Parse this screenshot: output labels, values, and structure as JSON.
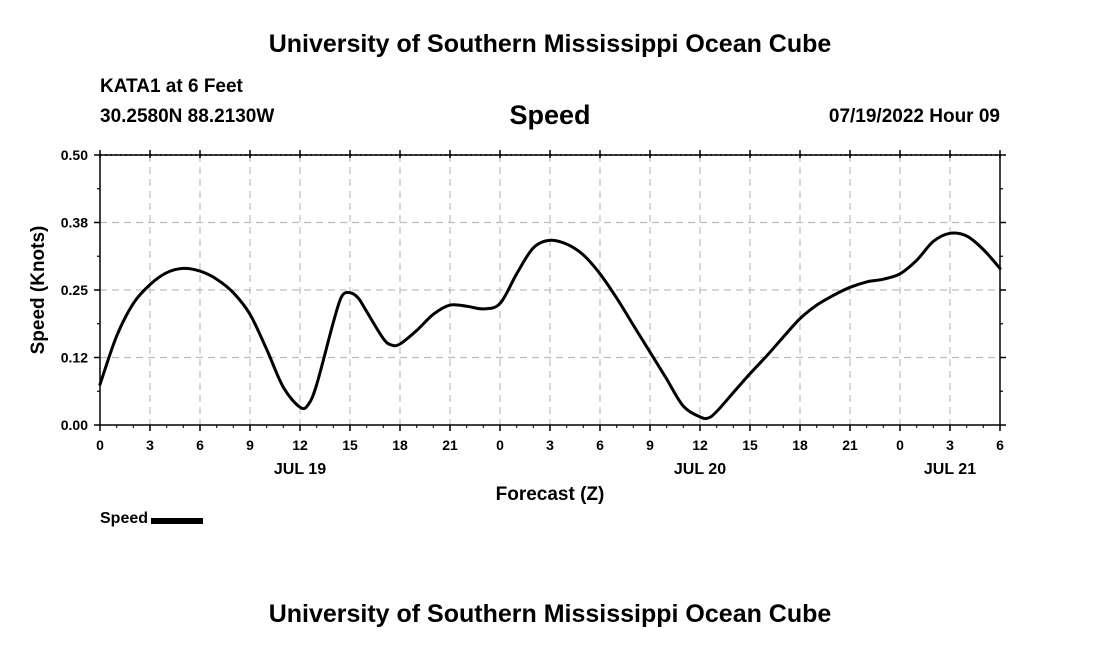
{
  "header": {
    "title": "University of Southern Mississippi Ocean Cube",
    "station": "KATA1 at 6 Feet",
    "coordinates": "30.2580N  88.2130W",
    "variable": "Speed",
    "datetime": "07/19/2022 Hour 09"
  },
  "footer": {
    "title": "University of Southern Mississippi Ocean Cube"
  },
  "legend": {
    "label": "Speed",
    "color": "#000000"
  },
  "chart_data": {
    "type": "line",
    "xlabel": "Forecast (Z)",
    "ylabel": "Speed (Knots)",
    "x_range_hours": [
      0,
      54
    ],
    "ylim": [
      0,
      0.5
    ],
    "y_ticks": [
      {
        "value": 0.0,
        "label": "0.00"
      },
      {
        "value": 0.125,
        "label": "0.12"
      },
      {
        "value": 0.25,
        "label": "0.25"
      },
      {
        "value": 0.375,
        "label": "0.38"
      },
      {
        "value": 0.5,
        "label": "0.50"
      }
    ],
    "x_ticks": [
      {
        "hour": 0,
        "label": "0"
      },
      {
        "hour": 3,
        "label": "3"
      },
      {
        "hour": 6,
        "label": "6"
      },
      {
        "hour": 9,
        "label": "9"
      },
      {
        "hour": 12,
        "label": "12"
      },
      {
        "hour": 15,
        "label": "15"
      },
      {
        "hour": 18,
        "label": "18"
      },
      {
        "hour": 21,
        "label": "21"
      },
      {
        "hour": 24,
        "label": "0"
      },
      {
        "hour": 27,
        "label": "3"
      },
      {
        "hour": 30,
        "label": "6"
      },
      {
        "hour": 33,
        "label": "9"
      },
      {
        "hour": 36,
        "label": "12"
      },
      {
        "hour": 39,
        "label": "15"
      },
      {
        "hour": 42,
        "label": "18"
      },
      {
        "hour": 45,
        "label": "21"
      },
      {
        "hour": 48,
        "label": "0"
      },
      {
        "hour": 51,
        "label": "3"
      },
      {
        "hour": 54,
        "label": "6"
      }
    ],
    "date_labels": [
      {
        "hour": 12,
        "label": "JUL 19"
      },
      {
        "hour": 36,
        "label": "JUL 20"
      },
      {
        "hour": 51,
        "label": "JUL 21"
      }
    ],
    "grid": true,
    "series": [
      {
        "name": "Speed",
        "color": "#000000",
        "points": [
          [
            0,
            0.075
          ],
          [
            1,
            0.165
          ],
          [
            2,
            0.225
          ],
          [
            3,
            0.26
          ],
          [
            4,
            0.282
          ],
          [
            5,
            0.29
          ],
          [
            6,
            0.285
          ],
          [
            7,
            0.27
          ],
          [
            8,
            0.245
          ],
          [
            9,
            0.205
          ],
          [
            10,
            0.14
          ],
          [
            11,
            0.07
          ],
          [
            12,
            0.033
          ],
          [
            12.5,
            0.038
          ],
          [
            13,
            0.075
          ],
          [
            14,
            0.19
          ],
          [
            14.5,
            0.238
          ],
          [
            15,
            0.245
          ],
          [
            15.5,
            0.235
          ],
          [
            16,
            0.21
          ],
          [
            17,
            0.16
          ],
          [
            17.5,
            0.148
          ],
          [
            18,
            0.15
          ],
          [
            19,
            0.175
          ],
          [
            20,
            0.205
          ],
          [
            21,
            0.222
          ],
          [
            22,
            0.22
          ],
          [
            23,
            0.215
          ],
          [
            24,
            0.225
          ],
          [
            25,
            0.28
          ],
          [
            26,
            0.328
          ],
          [
            27,
            0.342
          ],
          [
            28,
            0.335
          ],
          [
            29,
            0.315
          ],
          [
            30,
            0.28
          ],
          [
            31,
            0.235
          ],
          [
            32,
            0.185
          ],
          [
            33,
            0.135
          ],
          [
            34,
            0.085
          ],
          [
            35,
            0.035
          ],
          [
            36,
            0.015
          ],
          [
            36.5,
            0.013
          ],
          [
            37,
            0.025
          ],
          [
            38,
            0.06
          ],
          [
            39,
            0.095
          ],
          [
            40,
            0.128
          ],
          [
            41,
            0.163
          ],
          [
            42,
            0.197
          ],
          [
            43,
            0.222
          ],
          [
            44,
            0.24
          ],
          [
            45,
            0.255
          ],
          [
            46,
            0.265
          ],
          [
            47,
            0.27
          ],
          [
            48,
            0.28
          ],
          [
            49,
            0.305
          ],
          [
            50,
            0.34
          ],
          [
            51,
            0.355
          ],
          [
            52,
            0.35
          ],
          [
            53,
            0.325
          ],
          [
            54,
            0.29
          ]
        ]
      }
    ]
  }
}
